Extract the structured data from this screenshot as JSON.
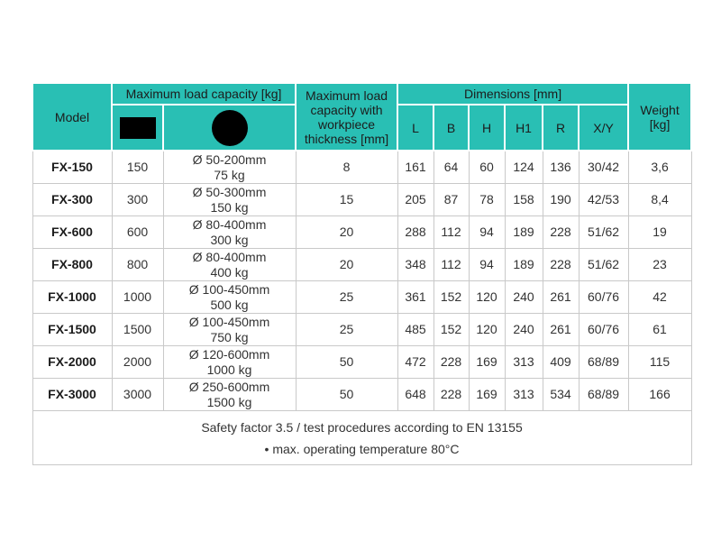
{
  "colors": {
    "header_teal": "#29bfb4",
    "body_border": "#c9c9c9",
    "header_border": "#ffffff",
    "icon_black": "#000000"
  },
  "table": {
    "header": {
      "model": "Model",
      "max_load_group": "Maximum load capacity [kg]",
      "workpiece": "Maximum load capacity with workpiece thickness [mm]",
      "dimensions_group": "Dimensions [mm]",
      "weight": "Weight [kg]",
      "rect_icon": "rectangle-icon",
      "circle_icon": "circle-icon"
    },
    "dim_cols": [
      "L",
      "B",
      "H",
      "H1",
      "R",
      "X/Y"
    ],
    "rows": [
      {
        "model": "FX-150",
        "rect": "150",
        "circle_line1": "Ø 50-200mm",
        "circle_line2": "75 kg",
        "workpiece": "8",
        "dims": [
          "161",
          "64",
          "60",
          "124",
          "136",
          "30/42"
        ],
        "weight": "3,6"
      },
      {
        "model": "FX-300",
        "rect": "300",
        "circle_line1": "Ø 50-300mm",
        "circle_line2": "150 kg",
        "workpiece": "15",
        "dims": [
          "205",
          "87",
          "78",
          "158",
          "190",
          "42/53"
        ],
        "weight": "8,4"
      },
      {
        "model": "FX-600",
        "rect": "600",
        "circle_line1": "Ø 80-400mm",
        "circle_line2": "300 kg",
        "workpiece": "20",
        "dims": [
          "288",
          "112",
          "94",
          "189",
          "228",
          "51/62"
        ],
        "weight": "19"
      },
      {
        "model": "FX-800",
        "rect": "800",
        "circle_line1": "Ø 80-400mm",
        "circle_line2": "400 kg",
        "workpiece": "20",
        "dims": [
          "348",
          "112",
          "94",
          "189",
          "228",
          "51/62"
        ],
        "weight": "23"
      },
      {
        "model": "FX-1000",
        "rect": "1000",
        "circle_line1": "Ø 100-450mm",
        "circle_line2": "500 kg",
        "workpiece": "25",
        "dims": [
          "361",
          "152",
          "120",
          "240",
          "261",
          "60/76"
        ],
        "weight": "42"
      },
      {
        "model": "FX-1500",
        "rect": "1500",
        "circle_line1": "Ø 100-450mm",
        "circle_line2": "750 kg",
        "workpiece": "25",
        "dims": [
          "485",
          "152",
          "120",
          "240",
          "261",
          "60/76"
        ],
        "weight": "61"
      },
      {
        "model": "FX-2000",
        "rect": "2000",
        "circle_line1": "Ø 120-600mm",
        "circle_line2": "1000 kg",
        "workpiece": "50",
        "dims": [
          "472",
          "228",
          "169",
          "313",
          "409",
          "68/89"
        ],
        "weight": "115"
      },
      {
        "model": "FX-3000",
        "rect": "3000",
        "circle_line1": "Ø 250-600mm",
        "circle_line2": "1500 kg",
        "workpiece": "50",
        "dims": [
          "648",
          "228",
          "169",
          "313",
          "534",
          "68/89"
        ],
        "weight": "166"
      }
    ],
    "footer": {
      "line1": "Safety factor 3.5 / test procedures according to EN 13155",
      "line2": "• max. operating temperature 80°C"
    }
  }
}
